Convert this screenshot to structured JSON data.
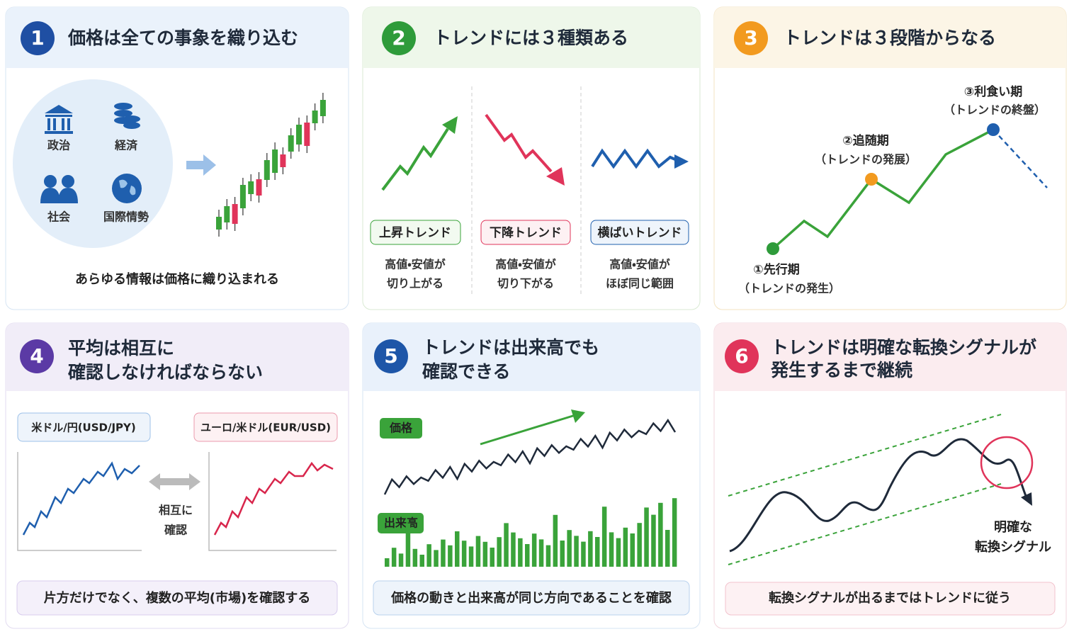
{
  "panels": [
    {
      "number": "1",
      "title": "価格は全ての事象を織り込む",
      "icons": [
        "政治",
        "経済",
        "社会",
        "国際情勢"
      ],
      "caption": "あらゆる情報は価格に織り込まれる"
    },
    {
      "number": "2",
      "title": "トレンドには３種類ある",
      "trends": [
        {
          "label": "上昇トレンド",
          "description": [
            "高値・安値が",
            "切り上がる"
          ]
        },
        {
          "label": "下降トレンド",
          "description": [
            "高値・安値が",
            "切り下がる"
          ]
        },
        {
          "label": "横ばいトレンド",
          "description": [
            "高値・安値が",
            "ほぼ同じ範囲"
          ]
        }
      ]
    },
    {
      "number": "3",
      "title": "トレンドは３段階からなる",
      "stages": [
        {
          "name": "①先行期",
          "note": "（トレンドの発生）"
        },
        {
          "name": "②追随期",
          "note": "（トレンドの発展）"
        },
        {
          "name": "③利食い期",
          "note": "（トレンドの終盤）"
        }
      ]
    },
    {
      "number": "4",
      "title": [
        "平均は相互に",
        "確認しなければならない"
      ],
      "markets": [
        "米ドル/円(USD/JPY)",
        "ユーロ/米ドル(EUR/USD)"
      ],
      "link": [
        "相互に",
        "確認"
      ],
      "footer": "片方だけでなく、複数の平均(市場)を確認する"
    },
    {
      "number": "5",
      "title": [
        "トレンドは出来高でも",
        "確認できる"
      ],
      "price_label": "価格",
      "volume_label": "出来高",
      "footer": "価格の動きと出来高が同じ方向であることを確認"
    },
    {
      "number": "6",
      "title": [
        "トレンドは明確な転換シグナルが",
        "発生するまで継続"
      ],
      "signal": [
        "明確な",
        "転換シグナル"
      ],
      "footer": "転換シグナルが出るまではトレンドに従う"
    }
  ]
}
